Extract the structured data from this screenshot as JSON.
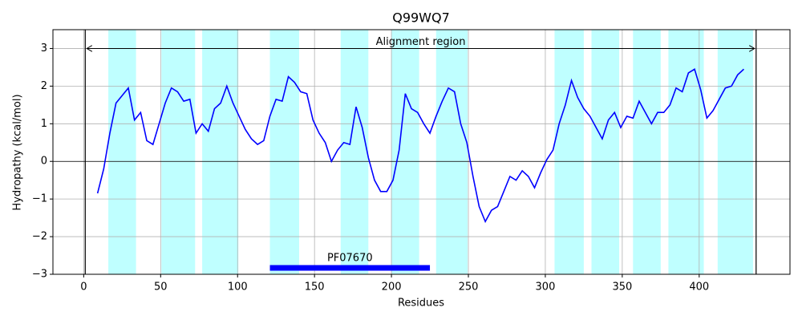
{
  "chart_data": {
    "type": "line",
    "title": "Q99WQ7",
    "x_label": "Residues",
    "y_label": "Hydropathy (kcal/mol)",
    "x": [
      9,
      13,
      17,
      21,
      25,
      29,
      33,
      37,
      41,
      45,
      49,
      53,
      57,
      61,
      65,
      69,
      73,
      77,
      81,
      85,
      89,
      93,
      97,
      101,
      105,
      109,
      113,
      117,
      121,
      125,
      129,
      133,
      137,
      141,
      145,
      149,
      153,
      157,
      161,
      165,
      169,
      173,
      177,
      181,
      185,
      189,
      193,
      197,
      201,
      205,
      209,
      213,
      217,
      221,
      225,
      229,
      233,
      237,
      241,
      245,
      249,
      253,
      257,
      261,
      265,
      269,
      273,
      277,
      281,
      285,
      289,
      293,
      297,
      301,
      305,
      309,
      313,
      317,
      321,
      325,
      329,
      333,
      337,
      341,
      345,
      349,
      353,
      357,
      361,
      365,
      369,
      373,
      377,
      381,
      385,
      389,
      393,
      397,
      401,
      405,
      409,
      413,
      417,
      421,
      425,
      429
    ],
    "values": [
      -0.85,
      -0.2,
      0.75,
      1.55,
      1.75,
      1.95,
      1.1,
      1.3,
      0.55,
      0.45,
      1.0,
      1.55,
      1.95,
      1.85,
      1.6,
      1.65,
      0.75,
      1.0,
      0.8,
      1.4,
      1.55,
      2.0,
      1.55,
      1.2,
      0.85,
      0.6,
      0.45,
      0.55,
      1.2,
      1.65,
      1.6,
      2.25,
      2.1,
      1.85,
      1.8,
      1.1,
      0.75,
      0.5,
      0.0,
      0.3,
      0.5,
      0.45,
      1.45,
      0.9,
      0.1,
      -0.5,
      -0.8,
      -0.8,
      -0.5,
      0.3,
      1.8,
      1.4,
      1.3,
      1.0,
      0.75,
      1.2,
      1.6,
      1.95,
      1.85,
      1.0,
      0.5,
      -0.4,
      -1.2,
      -1.6,
      -1.3,
      -1.2,
      -0.8,
      -0.4,
      -0.5,
      -0.25,
      -0.4,
      -0.7,
      -0.3,
      0.05,
      0.3,
      1.0,
      1.5,
      2.15,
      1.7,
      1.4,
      1.2,
      0.9,
      0.6,
      1.1,
      1.3,
      0.9,
      1.2,
      1.15,
      1.6,
      1.3,
      1.0,
      1.3,
      1.3,
      1.5,
      1.95,
      1.85,
      2.35,
      2.45,
      1.9,
      1.15,
      1.35,
      1.65,
      1.95,
      2.0,
      2.3,
      2.45
    ],
    "color": "#0000ff",
    "regions": [
      [
        16,
        34
      ],
      [
        50.5,
        72.4
      ],
      [
        77,
        100.5
      ],
      [
        121,
        140
      ],
      [
        167,
        185
      ],
      [
        200,
        218
      ],
      [
        229,
        249.5
      ],
      [
        306,
        325
      ],
      [
        330,
        348
      ],
      [
        357,
        375
      ],
      [
        380,
        403
      ],
      [
        412,
        435
      ]
    ],
    "region_color": "#bfffff",
    "vlines": [
      1,
      437
    ],
    "hline": 0,
    "annotation": {
      "text": "Alignment region",
      "start": 2,
      "end": 436,
      "y": 3
    },
    "domain": {
      "label": "PF07670",
      "start": 121,
      "end": 225,
      "y": -2.83,
      "color": "#0000ff"
    },
    "xlim": [
      -20,
      459
    ],
    "ylim": [
      -3,
      3.5
    ],
    "xticks": [
      0,
      50,
      100,
      150,
      200,
      250,
      300,
      350,
      400
    ],
    "yticks": [
      {
        "value": -3,
        "label": "−3"
      },
      {
        "value": -2,
        "label": "−2"
      },
      {
        "value": -1,
        "label": "−1"
      },
      0,
      1,
      2,
      3
    ],
    "grid": true
  }
}
